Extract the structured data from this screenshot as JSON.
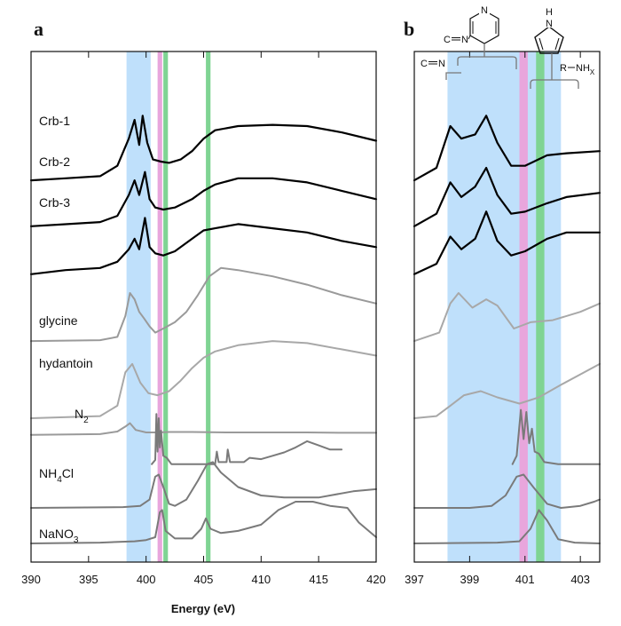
{
  "chart_data": [
    {
      "panel": "a",
      "type": "line",
      "xlabel": "Energy (eV)",
      "xlim": [
        390,
        420
      ],
      "xticks": [
        390,
        395,
        400,
        405,
        410,
        415,
        420
      ],
      "ylabel": "",
      "grid": false,
      "highlight_bands": [
        {
          "x0": 398.3,
          "x1": 400.4,
          "color": "#bfe0fb"
        },
        {
          "x0": 401.0,
          "x1": 401.4,
          "color": "#e8a6dc"
        },
        {
          "x0": 401.5,
          "x1": 401.9,
          "color": "#7fd493"
        },
        {
          "x0": 405.2,
          "x1": 405.6,
          "color": "#7fd493"
        }
      ],
      "series": [
        {
          "name": "Crb-1",
          "color": "#000000",
          "offset": 8.7,
          "x": [
            390,
            393,
            396,
            397.5,
            398.5,
            399.0,
            399.4,
            399.7,
            400.1,
            400.6,
            401.3,
            402.0,
            403.0,
            404.0,
            405.0,
            406.0,
            408.0,
            411.0,
            414.0,
            417.0,
            420.0
          ],
          "y": [
            0.0,
            0.05,
            0.1,
            0.35,
            1.0,
            1.45,
            0.85,
            1.55,
            0.9,
            0.5,
            0.45,
            0.42,
            0.5,
            0.7,
            1.0,
            1.2,
            1.3,
            1.33,
            1.3,
            1.15,
            0.95
          ]
        },
        {
          "name": "Crb-2",
          "color": "#000000",
          "offset": 7.6,
          "x": [
            390,
            393,
            396,
            397.5,
            398.5,
            399.0,
            399.4,
            399.9,
            400.3,
            400.8,
            401.5,
            402.5,
            404.0,
            405.0,
            406.0,
            408.0,
            411.0,
            414.0,
            417.0,
            420.0
          ],
          "y": [
            0.0,
            0.05,
            0.1,
            0.25,
            0.75,
            1.1,
            0.75,
            1.3,
            0.65,
            0.45,
            0.4,
            0.45,
            0.65,
            0.85,
            1.0,
            1.15,
            1.15,
            1.05,
            0.85,
            0.65
          ]
        },
        {
          "name": "Crb-3",
          "color": "#000000",
          "offset": 6.45,
          "x": [
            390,
            393,
            396,
            397.5,
            398.5,
            399.0,
            399.4,
            399.9,
            400.3,
            400.8,
            401.5,
            402.5,
            404.0,
            405.0,
            406.0,
            408.0,
            411.0,
            414.0,
            417.0,
            420.0
          ],
          "y": [
            0.0,
            0.1,
            0.15,
            0.3,
            0.6,
            0.85,
            0.6,
            1.35,
            0.65,
            0.5,
            0.45,
            0.55,
            0.85,
            1.05,
            1.1,
            1.2,
            1.1,
            1.0,
            0.8,
            0.65
          ]
        },
        {
          "name": "",
          "color": "#9a9a9a",
          "offset": 4.85,
          "x": [
            390,
            396,
            397.5,
            398.2,
            398.6,
            399.0,
            399.4,
            399.8,
            400.3,
            400.8,
            401.5,
            402.5,
            403.5,
            404.5,
            405.5,
            406.5,
            408.0,
            411.0,
            414.0,
            417.0,
            420.0
          ],
          "y": [
            0.0,
            0.02,
            0.1,
            0.6,
            1.15,
            1.0,
            0.7,
            0.55,
            0.35,
            0.2,
            0.3,
            0.45,
            0.7,
            1.1,
            1.55,
            1.75,
            1.7,
            1.55,
            1.35,
            1.1,
            0.9
          ]
        },
        {
          "name": "glycine",
          "color": "#a8a8a8",
          "offset": 3.0,
          "x": [
            390,
            396,
            397.5,
            398.2,
            398.8,
            399.5,
            400.2,
            401.0,
            402.0,
            403.0,
            404.0,
            405.0,
            406.0,
            408.0,
            411.0,
            414.0,
            417.0,
            420.0
          ],
          "y": [
            0.0,
            0.05,
            0.3,
            1.1,
            1.3,
            0.85,
            0.6,
            0.55,
            0.65,
            0.9,
            1.2,
            1.45,
            1.6,
            1.75,
            1.85,
            1.8,
            1.65,
            1.5
          ]
        },
        {
          "name": "hydantoin",
          "color": "#9a9a9a",
          "offset": 2.6,
          "x": [
            390,
            396,
            397.5,
            398.2,
            398.6,
            399.1,
            400.0,
            401.0,
            402.0,
            404.0,
            407.0,
            410.0,
            414.0,
            417.0,
            420.0
          ],
          "y": [
            0.0,
            0.02,
            0.08,
            0.2,
            0.28,
            0.12,
            0.06,
            0.06,
            0.07,
            0.07,
            0.06,
            0.06,
            0.06,
            0.05,
            0.05
          ]
        },
        {
          "name": "N2",
          "color": "#7a7a7a",
          "offset": 1.9,
          "x": [
            400.5,
            400.8,
            400.9,
            401.0,
            401.1,
            401.2,
            401.3,
            401.5,
            401.8,
            402.2,
            404.0,
            406.0,
            406.15,
            406.3,
            407.0,
            407.1,
            407.3,
            408.5,
            409.0,
            410.0,
            411.0,
            412.0,
            413.0,
            414.0,
            415.0,
            416.0,
            417.0
          ],
          "y": [
            0.0,
            0.1,
            1.2,
            0.3,
            1.1,
            0.4,
            0.8,
            0.2,
            0.15,
            0.0,
            0.0,
            0.0,
            0.3,
            0.05,
            0.05,
            0.35,
            0.05,
            0.05,
            0.15,
            0.12,
            0.2,
            0.28,
            0.4,
            0.55,
            0.45,
            0.35,
            0.35
          ]
        },
        {
          "name": "NH4Cl",
          "color": "#7a7a7a",
          "offset": 0.85,
          "x": [
            390,
            398,
            399.5,
            400.3,
            400.8,
            401.1,
            401.5,
            402.0,
            402.5,
            403.5,
            404.5,
            405.3,
            405.8,
            406.5,
            408.0,
            410.0,
            412.0,
            415.0,
            418.0,
            420.0
          ],
          "y": [
            0.0,
            0.02,
            0.05,
            0.2,
            0.75,
            0.8,
            0.5,
            0.1,
            0.05,
            0.2,
            0.65,
            1.05,
            1.1,
            0.85,
            0.5,
            0.3,
            0.25,
            0.25,
            0.4,
            0.45
          ]
        },
        {
          "name": "NaNO3",
          "color": "#7a7a7a",
          "offset": 0.0,
          "x": [
            390,
            396,
            399,
            400.0,
            400.8,
            401.2,
            401.4,
            401.7,
            402.5,
            404.0,
            404.8,
            405.2,
            405.6,
            406.5,
            408.0,
            410.0,
            411.5,
            413.0,
            414.5,
            416.0,
            417.5,
            418.5,
            420.0
          ],
          "y": [
            0.0,
            0.02,
            0.05,
            0.08,
            0.15,
            0.75,
            0.8,
            0.3,
            0.12,
            0.12,
            0.35,
            0.6,
            0.35,
            0.25,
            0.3,
            0.45,
            0.8,
            1.0,
            1.0,
            0.9,
            0.85,
            0.5,
            0.15
          ]
        }
      ],
      "labels": [
        {
          "text": "Crb-1",
          "series": "Crb-1"
        },
        {
          "text": "Crb-2",
          "series": "Crb-2"
        },
        {
          "text": "Crb-3",
          "series": "Crb-3"
        },
        {
          "text": "glycine",
          "series": "glycine"
        },
        {
          "text": "hydantoin",
          "series": "hydantoin"
        },
        {
          "text": "N2",
          "series": "N2"
        },
        {
          "text": "NH4Cl",
          "series": "NH4Cl"
        },
        {
          "text": "NaNO3",
          "series": "NaNO3"
        }
      ]
    },
    {
      "panel": "b",
      "type": "line",
      "xlabel": "",
      "xlim": [
        397,
        403.7
      ],
      "xticks": [
        397,
        399,
        401,
        403
      ],
      "ylabel": "",
      "grid": false,
      "highlight_bands": [
        {
          "x0": 398.2,
          "x1": 402.3,
          "color": "#bfe0fb"
        },
        {
          "x0": 400.8,
          "x1": 401.1,
          "color": "#e8a6dc"
        },
        {
          "x0": 401.4,
          "x1": 401.7,
          "color": "#7fd493"
        }
      ],
      "annotations": [
        {
          "text": "C≡N",
          "kind": "structure-label"
        },
        {
          "text": "R–NHx",
          "kind": "structure-label"
        }
      ],
      "series": [
        {
          "name": "",
          "color": "#000000",
          "offset": 8.7,
          "x": [
            397.0,
            397.8,
            398.3,
            398.7,
            399.2,
            399.6,
            400.0,
            400.5,
            401.0,
            401.8,
            402.5,
            403.7
          ],
          "y": [
            0.0,
            0.3,
            1.3,
            1.0,
            1.1,
            1.55,
            0.9,
            0.35,
            0.35,
            0.6,
            0.65,
            0.7
          ]
        },
        {
          "name": "",
          "color": "#000000",
          "offset": 7.6,
          "x": [
            397.0,
            397.8,
            398.3,
            398.7,
            399.2,
            399.6,
            400.0,
            400.5,
            401.0,
            401.8,
            402.5,
            403.7
          ],
          "y": [
            0.0,
            0.3,
            1.05,
            0.7,
            0.95,
            1.4,
            0.75,
            0.3,
            0.35,
            0.55,
            0.7,
            0.8
          ]
        },
        {
          "name": "",
          "color": "#000000",
          "offset": 6.45,
          "x": [
            397.0,
            397.8,
            398.3,
            398.7,
            399.2,
            399.6,
            400.0,
            400.5,
            401.0,
            401.8,
            402.5,
            403.7
          ],
          "y": [
            0.0,
            0.25,
            0.9,
            0.6,
            0.85,
            1.5,
            0.8,
            0.45,
            0.55,
            0.85,
            1.0,
            1.0
          ]
        },
        {
          "name": "",
          "color": "#a8a8a8",
          "offset": 4.85,
          "x": [
            397.0,
            397.9,
            398.3,
            398.6,
            399.1,
            399.6,
            400.0,
            400.6,
            401.2,
            402.0,
            403.0,
            403.7
          ],
          "y": [
            0.0,
            0.2,
            0.9,
            1.15,
            0.8,
            1.0,
            0.85,
            0.3,
            0.45,
            0.5,
            0.7,
            0.9
          ]
        },
        {
          "name": "",
          "color": "#a8a8a8",
          "offset": 3.0,
          "x": [
            397.0,
            397.8,
            398.3,
            398.8,
            399.4,
            400.0,
            400.8,
            401.5,
            402.3,
            403.0,
            403.7
          ],
          "y": [
            0.0,
            0.05,
            0.3,
            0.55,
            0.65,
            0.5,
            0.35,
            0.5,
            0.8,
            1.05,
            1.3
          ]
        },
        {
          "name": "",
          "color": "#7a7a7a",
          "offset": 1.9,
          "x": [
            400.55,
            400.7,
            400.85,
            400.95,
            401.05,
            401.15,
            401.25,
            401.35,
            401.5,
            401.7,
            402.2,
            403.7
          ],
          "y": [
            0.0,
            0.2,
            1.3,
            0.6,
            1.25,
            0.5,
            0.85,
            0.3,
            0.25,
            0.05,
            0.0,
            0.0
          ]
        },
        {
          "name": "",
          "color": "#7a7a7a",
          "offset": 0.85,
          "x": [
            397.0,
            399.0,
            399.8,
            400.3,
            400.7,
            400.95,
            401.3,
            401.8,
            402.3,
            403.0,
            403.5,
            403.7
          ],
          "y": [
            0.0,
            0.0,
            0.05,
            0.3,
            0.75,
            0.8,
            0.5,
            0.1,
            0.0,
            0.05,
            0.15,
            0.2
          ]
        },
        {
          "name": "",
          "color": "#7a7a7a",
          "offset": 0.0,
          "x": [
            397.0,
            400.0,
            400.8,
            401.2,
            401.5,
            401.8,
            402.2,
            402.8,
            403.7
          ],
          "y": [
            0.0,
            0.02,
            0.05,
            0.35,
            0.8,
            0.55,
            0.1,
            0.02,
            0.0
          ]
        }
      ]
    }
  ],
  "text": {
    "panel_a": "a",
    "panel_b": "b",
    "x_title": "Energy (eV)",
    "lbl_crb1": "Crb-1",
    "lbl_crb2": "Crb-2",
    "lbl_crb3": "Crb-3",
    "lbl_glycine": "glycine",
    "lbl_hydantoin": "hydantoin",
    "lbl_n2_main": "N",
    "lbl_n2_sub": "2",
    "lbl_nh4cl_a": "NH",
    "lbl_nh4cl_sub": "4",
    "lbl_nh4cl_b": "Cl",
    "lbl_nano3_a": "NaNO",
    "lbl_nano3_sub": "3",
    "struct_cn_top": "C",
    "struct_cn_top_n": "N",
    "struct_cn_left": "C",
    "struct_cn_left_n": "N",
    "struct_pyridine_n": "N",
    "struct_pyrrole_h": "H",
    "struct_pyrrole_n": "N",
    "struct_amine_r": "R",
    "struct_amine_nh": "NH",
    "struct_amine_x": "X"
  }
}
